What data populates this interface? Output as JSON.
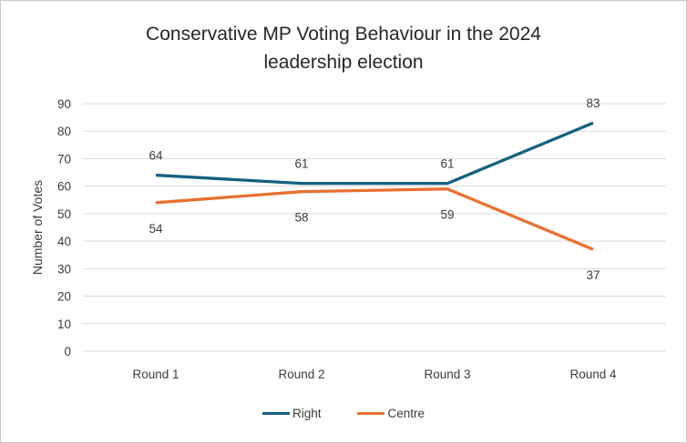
{
  "window": {
    "background": "#FFFFFF",
    "border_color": "#C9C9C9"
  },
  "title": {
    "line1": "Conservative MP Voting Behaviour in the 2024",
    "line2": "leadership election"
  },
  "chart_data": {
    "type": "line",
    "title": "Conservative MP Voting Behaviour in the 2024 leadership election",
    "categories": [
      "Round 1",
      "Round 2",
      "Round 3",
      "Round 4"
    ],
    "series": [
      {
        "name": "Right",
        "values": [
          64,
          61,
          61,
          83
        ],
        "color": "#156082",
        "data_label_position": "above"
      },
      {
        "name": "Centre",
        "values": [
          54,
          58,
          59,
          37
        ],
        "color": "#E97132",
        "data_label_position": "below"
      }
    ],
    "xlabel": "",
    "ylabel": "Number of Votes",
    "ylim": [
      0,
      90
    ],
    "yticks": [
      0,
      10,
      20,
      30,
      40,
      50,
      60,
      70,
      80,
      90
    ],
    "grid": true,
    "gridline_color": "#D9D9D9",
    "text_color": "#3B3B3B",
    "legend_position": "bottom"
  }
}
